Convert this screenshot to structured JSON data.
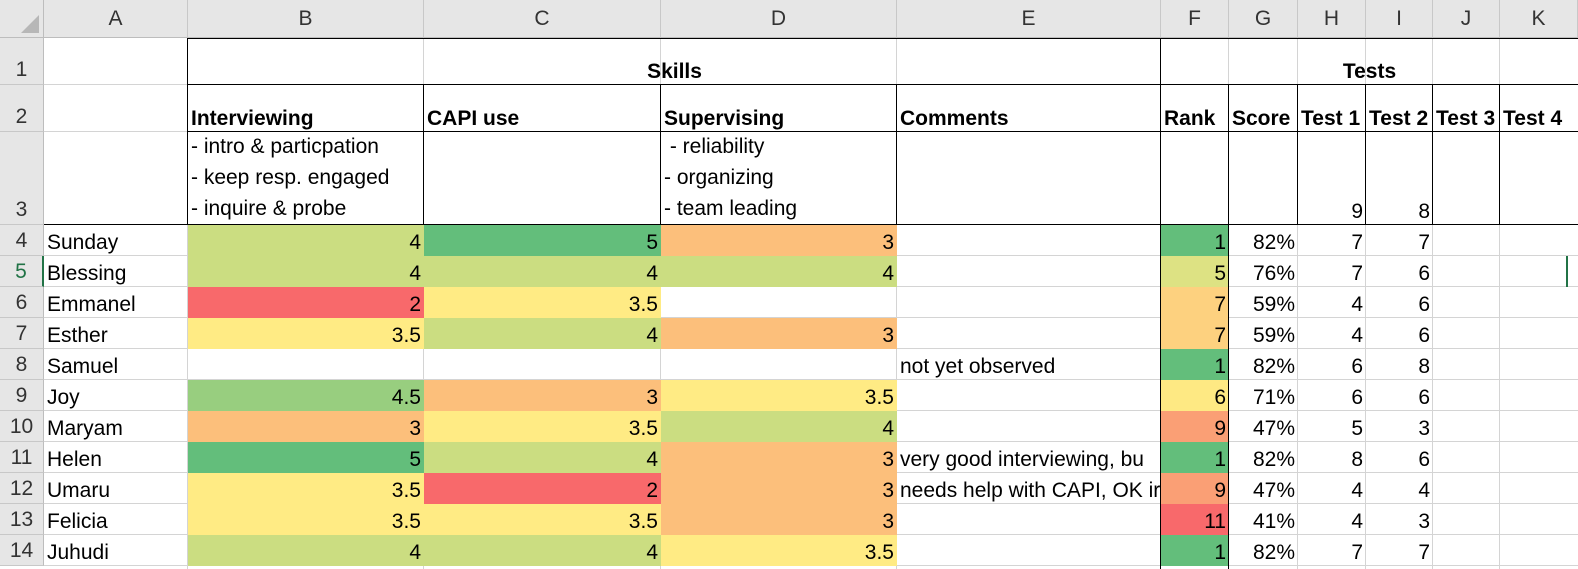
{
  "columns": [
    "A",
    "B",
    "C",
    "D",
    "E",
    "F",
    "G",
    "H",
    "I",
    "J",
    "K"
  ],
  "rows": [
    "1",
    "2",
    "3",
    "4",
    "5",
    "6",
    "7",
    "8",
    "9",
    "10",
    "11",
    "12",
    "13",
    "14"
  ],
  "header": {
    "skills": "Skills",
    "tests": "Tests",
    "labels": [
      "Interviewing",
      "CAPI use",
      "Supervising",
      "Comments",
      "Rank",
      "Score",
      "Test 1",
      "Test 2",
      "Test 3",
      "Test 4"
    ]
  },
  "row3": {
    "interviewing_note": "- intro & particpation\n- keep resp. engaged\n- inquire & probe",
    "supervising_note": " - reliability\n- organizing\n- team leading",
    "test1_max": "9",
    "test2_max": "8"
  },
  "data_rows": [
    {
      "name": "Sunday",
      "interviewing": "4",
      "capi": "5",
      "supervising": "3",
      "comment": "",
      "rank": "1",
      "score": "82%",
      "test1": "7",
      "test2": "7"
    },
    {
      "name": "Blessing",
      "interviewing": "4",
      "capi": "4",
      "supervising": "4",
      "comment": "",
      "rank": "5",
      "score": "76%",
      "test1": "7",
      "test2": "6"
    },
    {
      "name": "Emmanel",
      "interviewing": "2",
      "capi": "3.5",
      "supervising": "",
      "comment": "",
      "rank": "7",
      "score": "59%",
      "test1": "4",
      "test2": "6"
    },
    {
      "name": "Esther",
      "interviewing": "3.5",
      "capi": "4",
      "supervising": "3",
      "comment": "",
      "rank": "7",
      "score": "59%",
      "test1": "4",
      "test2": "6"
    },
    {
      "name": "Samuel",
      "interviewing": "",
      "capi": "",
      "supervising": "",
      "comment": "not yet observed",
      "rank": "1",
      "score": "82%",
      "test1": "6",
      "test2": "8"
    },
    {
      "name": "Joy",
      "interviewing": "4.5",
      "capi": "3",
      "supervising": "3.5",
      "comment": "",
      "rank": "6",
      "score": "71%",
      "test1": "6",
      "test2": "6"
    },
    {
      "name": "Maryam",
      "interviewing": "3",
      "capi": "3.5",
      "supervising": "4",
      "comment": "",
      "rank": "9",
      "score": "47%",
      "test1": "5",
      "test2": "3"
    },
    {
      "name": "Helen",
      "interviewing": "5",
      "capi": "4",
      "supervising": "3",
      "comment": "very good interviewing, bu",
      "rank": "1",
      "score": "82%",
      "test1": "8",
      "test2": "6"
    },
    {
      "name": "Umaru",
      "interviewing": "3.5",
      "capi": "2",
      "supervising": "3",
      "comment": "needs help with CAPI, OK ir",
      "rank": "9",
      "score": "47%",
      "test1": "4",
      "test2": "4"
    },
    {
      "name": "Felicia",
      "interviewing": "3.5",
      "capi": "3.5",
      "supervising": "3",
      "comment": "",
      "rank": "11",
      "score": "41%",
      "test1": "4",
      "test2": "3"
    },
    {
      "name": "Juhudi",
      "interviewing": "4",
      "capi": "4",
      "supervising": "3.5",
      "comment": "",
      "rank": "1",
      "score": "82%",
      "test1": "7",
      "test2": "7"
    }
  ],
  "colors": {
    "score_5": "#63be7b",
    "score_4_5": "#98ce7f",
    "score_4": "#cbdd81",
    "score_3_5": "#ffeb84",
    "score_3": "#fcbf7b",
    "score_2": "#f8696b",
    "rank_1": "#63be7b",
    "rank_5": "#dde283",
    "rank_6": "#fee983",
    "rank_7": "#fdd17f",
    "rank_9": "#fa9f75",
    "rank_11": "#f8696b",
    "selection_green": "#217346"
  }
}
